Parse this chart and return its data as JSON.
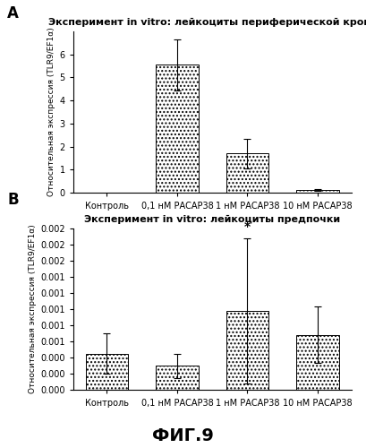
{
  "panel_A": {
    "title": "Эксперимент in vitro: лейкоциты периферической крови",
    "categories": [
      "Контроль",
      "0,1 нМ РАСАР38",
      "1 нМ РАСАР38",
      "10 нМ РАСАР38"
    ],
    "values": [
      0.0,
      5.55,
      1.7,
      0.12
    ],
    "errors": [
      0.0,
      1.1,
      0.65,
      0.05
    ],
    "ylabel": "Относительная экспрессия (TLR9/EF1α)",
    "ylim": [
      0,
      7
    ],
    "yticks": [
      0,
      1,
      2,
      3,
      4,
      5,
      6
    ]
  },
  "panel_B": {
    "title": "Эксперимент in vitro: лейкоциты предпочки",
    "categories": [
      "Контроль",
      "0,1 нМ РАСАР38",
      "1 нМ РАСАР38",
      "10 нМ РАСАР38"
    ],
    "values": [
      0.00045,
      0.0003,
      0.00098,
      0.00068
    ],
    "errors": [
      0.00025,
      0.00015,
      0.0009,
      0.00035
    ],
    "star_index": 2,
    "ylabel": "Относительная экспрессия (TLR9/EF1α)",
    "ylim": [
      0,
      0.002
    ],
    "yticks": [
      0.0,
      0.0002,
      0.0004,
      0.0006,
      0.0008,
      0.001,
      0.0012,
      0.0014,
      0.0016,
      0.0018,
      0.002
    ]
  },
  "figure_label": "ФИГ.9",
  "background_color": "#ffffff",
  "label_A": "A",
  "label_B": "B"
}
